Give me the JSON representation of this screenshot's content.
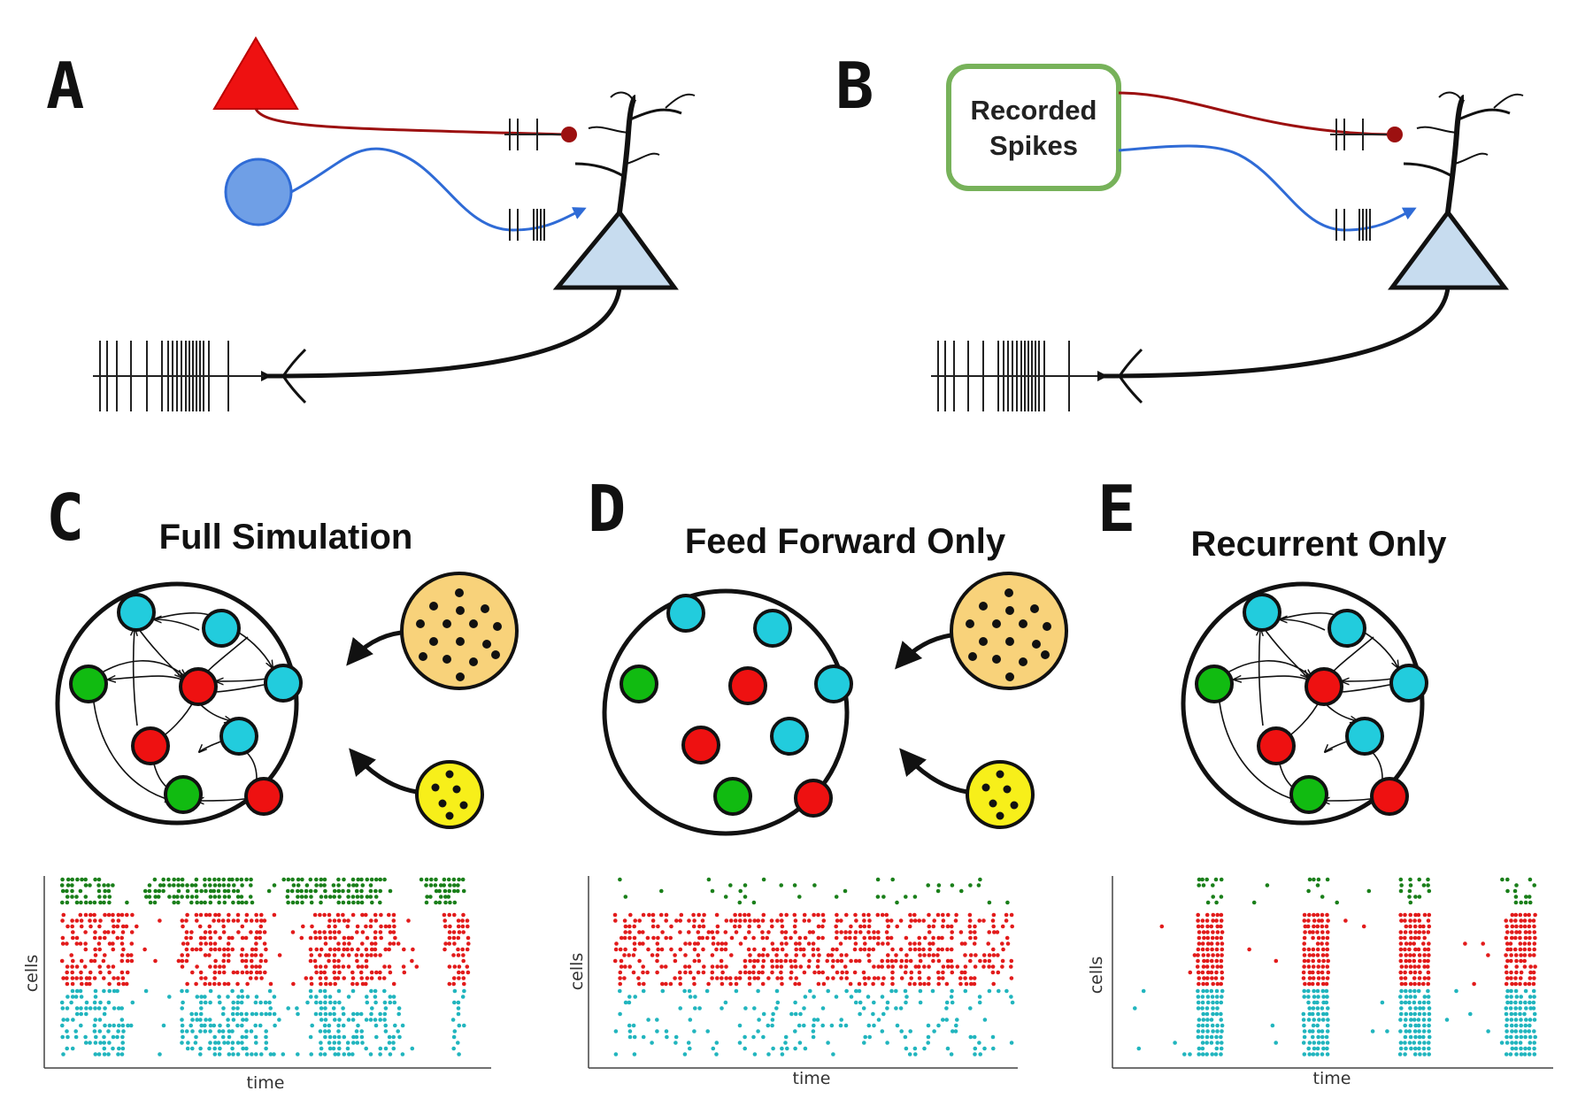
{
  "panels": {
    "A": {
      "label": "A"
    },
    "B": {
      "label": "B",
      "box_text_line1": "Recorded",
      "box_text_line2": "Spikes"
    },
    "C": {
      "label": "C",
      "title": "Full Simulation"
    },
    "D": {
      "label": "D",
      "title": "Feed Forward Only"
    },
    "E": {
      "label": "E",
      "title": "Recurrent Only"
    }
  },
  "raster": {
    "xlabel": "time",
    "ylabel": "cells"
  },
  "colors": {
    "excitatory_input": "#ee1111",
    "inhibitory_input": "#6f9fe6",
    "red_axon": "#9c1010",
    "blue_axon": "#2f6bd6",
    "soma": "#c7dcef",
    "recorded_box": "#77b25a",
    "cyan": "#22ccdd",
    "green": "#11bb11",
    "red": "#ee1111",
    "big_input": "#f8d27a",
    "small_input": "#f7ef1a",
    "raster_green": "#1a7f1a",
    "raster_red": "#e21b1b",
    "raster_cyan": "#21b5be"
  }
}
